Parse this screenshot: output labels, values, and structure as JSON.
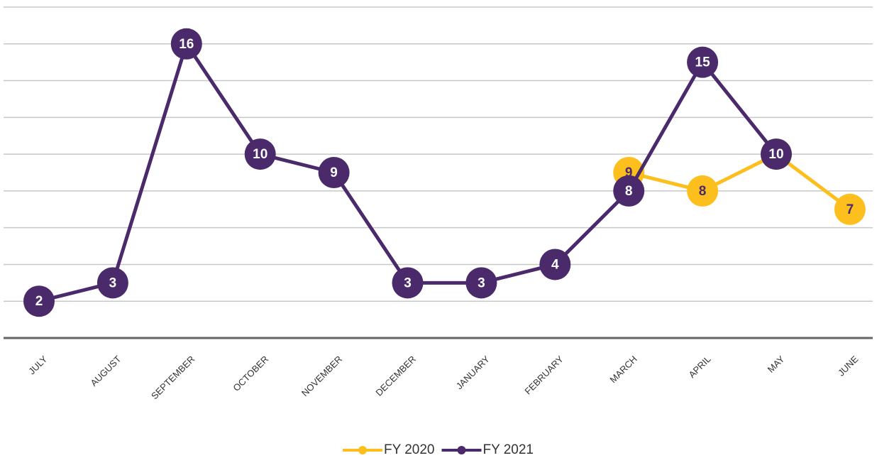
{
  "chart_data": {
    "type": "line",
    "categories": [
      "JULY",
      "AUGUST",
      "SEPTEMBER",
      "OCTOBER",
      "NOVEMBER",
      "DECEMBER",
      "JANUARY",
      "FEBRUARY",
      "MARCH",
      "APRIL",
      "MAY",
      "JUNE"
    ],
    "series": [
      {
        "name": "FY 2020",
        "color": "#fcbf1e",
        "label_color": "#4b2a6b",
        "values": [
          null,
          null,
          null,
          null,
          null,
          null,
          null,
          null,
          9,
          8,
          10,
          7
        ]
      },
      {
        "name": "FY 2021",
        "color": "#4b2a6b",
        "label_color": "#ffffff",
        "values": [
          2,
          3,
          16,
          10,
          9,
          3,
          3,
          4,
          8,
          15,
          10,
          null
        ]
      }
    ],
    "ylim": [
      0,
      18
    ],
    "yticks": [
      0,
      2,
      4,
      6,
      8,
      10,
      12,
      14,
      16,
      18
    ],
    "grid": true,
    "legend": "bottom"
  }
}
